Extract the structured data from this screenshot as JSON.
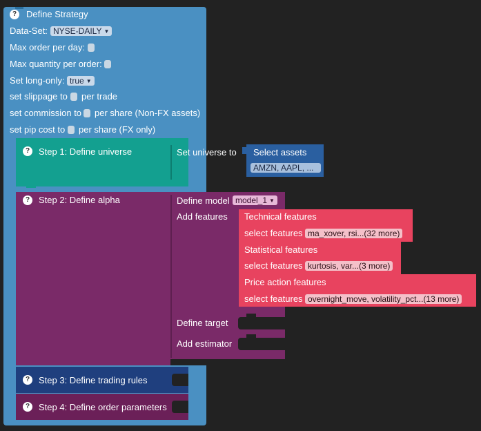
{
  "strategy": {
    "title": "Define Strategy",
    "dataset_label": "Data-Set:",
    "dataset_value": "NYSE-DAILY",
    "max_order_label": "Max order per day:",
    "max_qty_label": "Max quantity per order:",
    "long_only_label": "Set long-only:",
    "long_only_value": "true",
    "slippage_pre": "set slippage to",
    "slippage_post": "per trade",
    "commission_pre": "set commission to",
    "commission_post": "per share (Non-FX assets)",
    "pip_pre": "set pip cost to",
    "pip_post": "per share (FX only)"
  },
  "step1": {
    "title": "Step 1: Define universe",
    "set_universe_label": "Set universe to",
    "select_assets_label": "Select assets",
    "assets_value": "AMZN, AAPL, ..."
  },
  "step2": {
    "title": "Step 2: Define alpha",
    "model_label": "Define model",
    "model_value": "model_1",
    "add_features_label": "Add features",
    "technical_title": "Technical features",
    "technical_select": "select features",
    "technical_value": "ma_xover, rsi...(32 more)",
    "statistical_title": "Statistical features",
    "statistical_select": "select features",
    "statistical_value": "kurtosis, var...(3 more)",
    "price_title": "Price action features",
    "price_select": "select features",
    "price_value": "overnight_move, volatility_pct...(13 more)",
    "target_label": "Define target",
    "estimator_label": "Add estimator"
  },
  "step3": {
    "title": "Step 3: Define trading rules"
  },
  "step4": {
    "title": "Step 4: Define order parameters"
  },
  "help_glyph": "?",
  "colors": {
    "strategy": "#4a90c2",
    "step1": "#13a090",
    "step2": "#7a2a68",
    "features": "#e8435f",
    "step3": "#1f3f7e",
    "step4": "#6b2058"
  }
}
